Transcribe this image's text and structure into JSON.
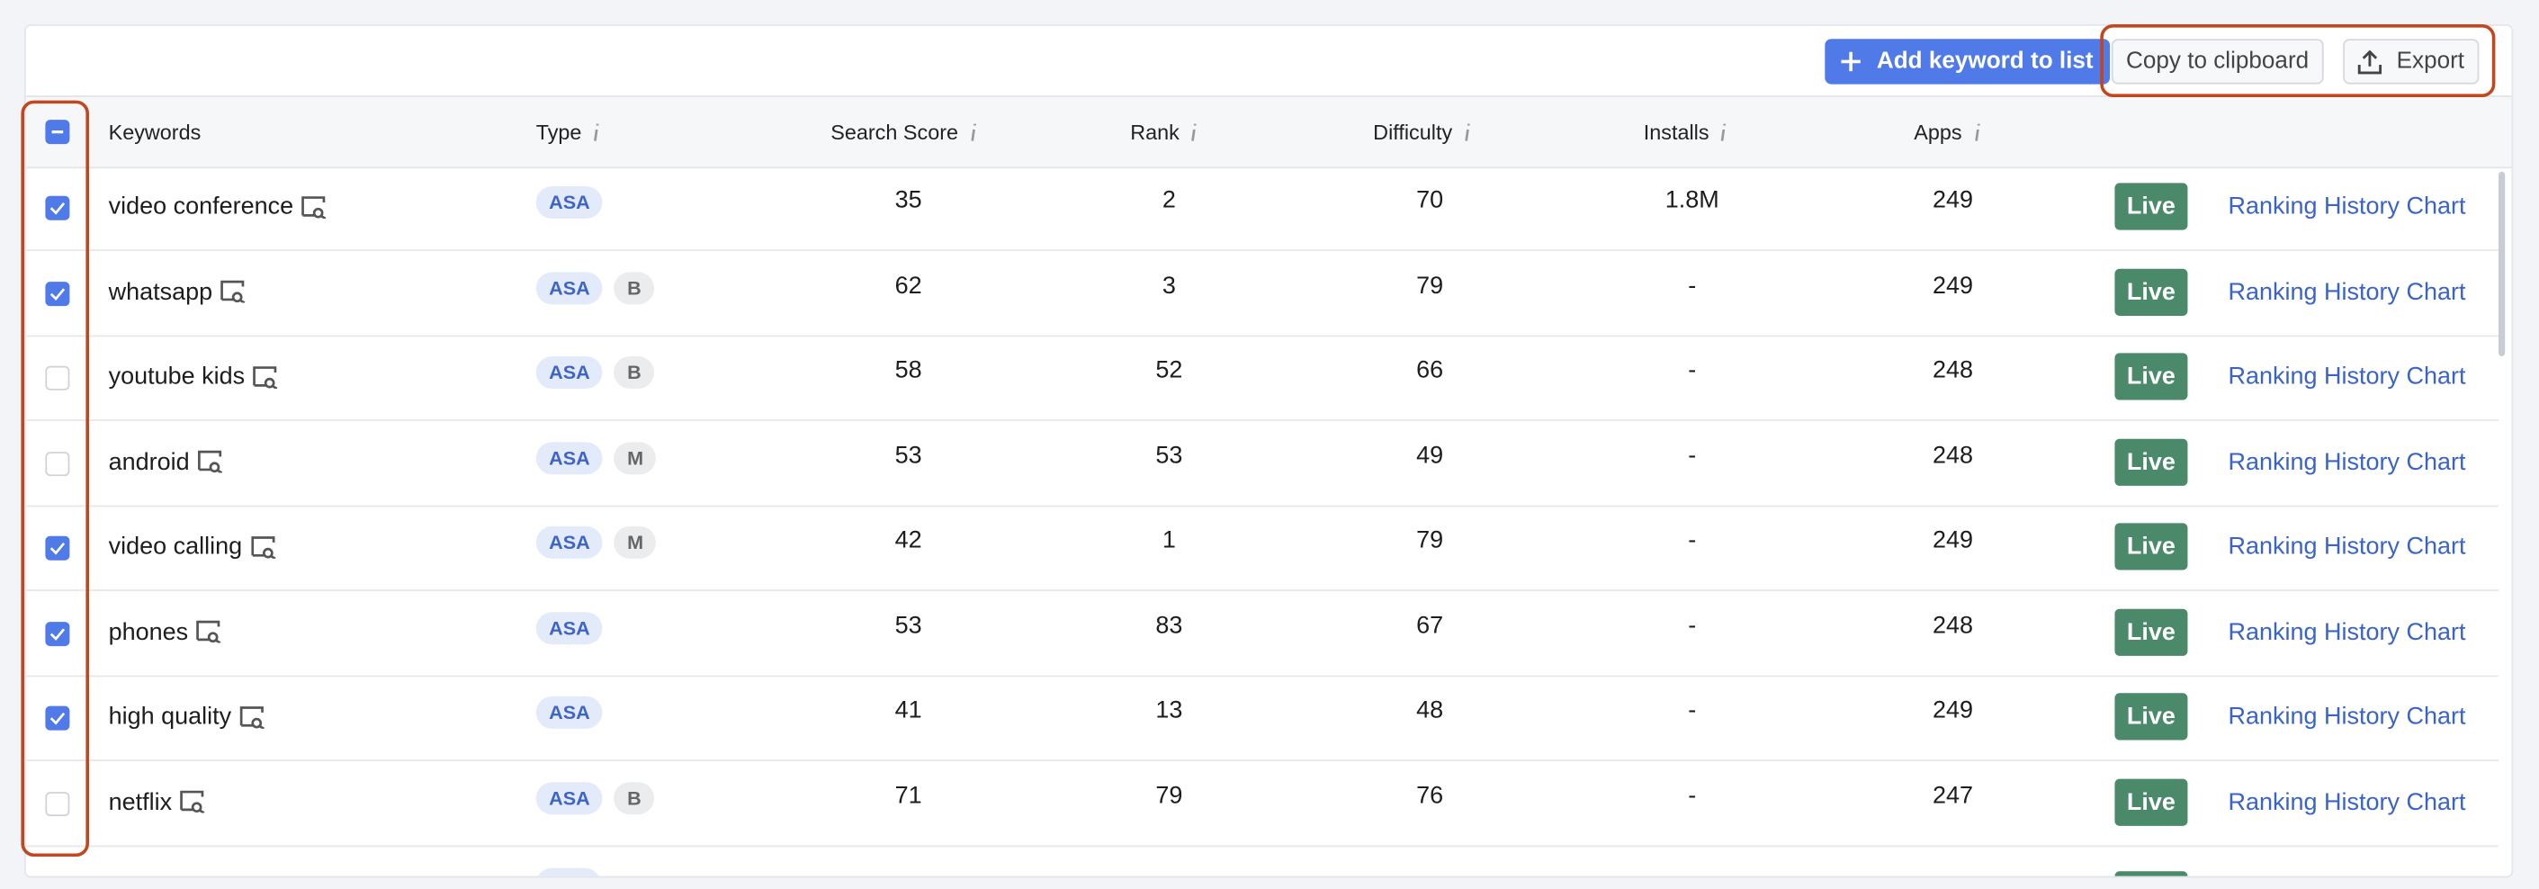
{
  "toolbar": {
    "add_button": "Add keyword to list",
    "copy_button": "Copy to clipboard",
    "export_button": "Export"
  },
  "table": {
    "columns": [
      "Keywords",
      "Type",
      "Search Score",
      "Rank",
      "Difficulty",
      "Installs",
      "Apps"
    ],
    "rows": [
      {
        "checked": true,
        "keyword": "video conference",
        "tags": [
          "ASA"
        ],
        "search_score": 35,
        "rank": 2,
        "difficulty": 70,
        "installs": "1.8M",
        "apps": 249,
        "status": "Live",
        "link": "Ranking History Chart"
      },
      {
        "checked": true,
        "keyword": "whatsapp",
        "tags": [
          "ASA",
          "B"
        ],
        "search_score": 62,
        "rank": 3,
        "difficulty": 79,
        "installs": "-",
        "apps": 249,
        "status": "Live",
        "link": "Ranking History Chart"
      },
      {
        "checked": false,
        "keyword": "youtube kids",
        "tags": [
          "ASA",
          "B"
        ],
        "search_score": 58,
        "rank": 52,
        "difficulty": 66,
        "installs": "-",
        "apps": 248,
        "status": "Live",
        "link": "Ranking History Chart"
      },
      {
        "checked": false,
        "keyword": "android",
        "tags": [
          "ASA",
          "M"
        ],
        "search_score": 53,
        "rank": 53,
        "difficulty": 49,
        "installs": "-",
        "apps": 248,
        "status": "Live",
        "link": "Ranking History Chart"
      },
      {
        "checked": true,
        "keyword": "video calling",
        "tags": [
          "ASA",
          "M"
        ],
        "search_score": 42,
        "rank": 1,
        "difficulty": 79,
        "installs": "-",
        "apps": 249,
        "status": "Live",
        "link": "Ranking History Chart"
      },
      {
        "checked": true,
        "keyword": "phones",
        "tags": [
          "ASA"
        ],
        "search_score": 53,
        "rank": 83,
        "difficulty": 67,
        "installs": "-",
        "apps": 248,
        "status": "Live",
        "link": "Ranking History Chart"
      },
      {
        "checked": true,
        "keyword": "high quality",
        "tags": [
          "ASA"
        ],
        "search_score": 41,
        "rank": 13,
        "difficulty": 48,
        "installs": "-",
        "apps": 249,
        "status": "Live",
        "link": "Ranking History Chart"
      },
      {
        "checked": false,
        "keyword": "netflix",
        "tags": [
          "ASA",
          "B"
        ],
        "search_score": 71,
        "rank": 79,
        "difficulty": 76,
        "installs": "-",
        "apps": 247,
        "status": "Live",
        "link": "Ranking History Chart"
      }
    ]
  }
}
